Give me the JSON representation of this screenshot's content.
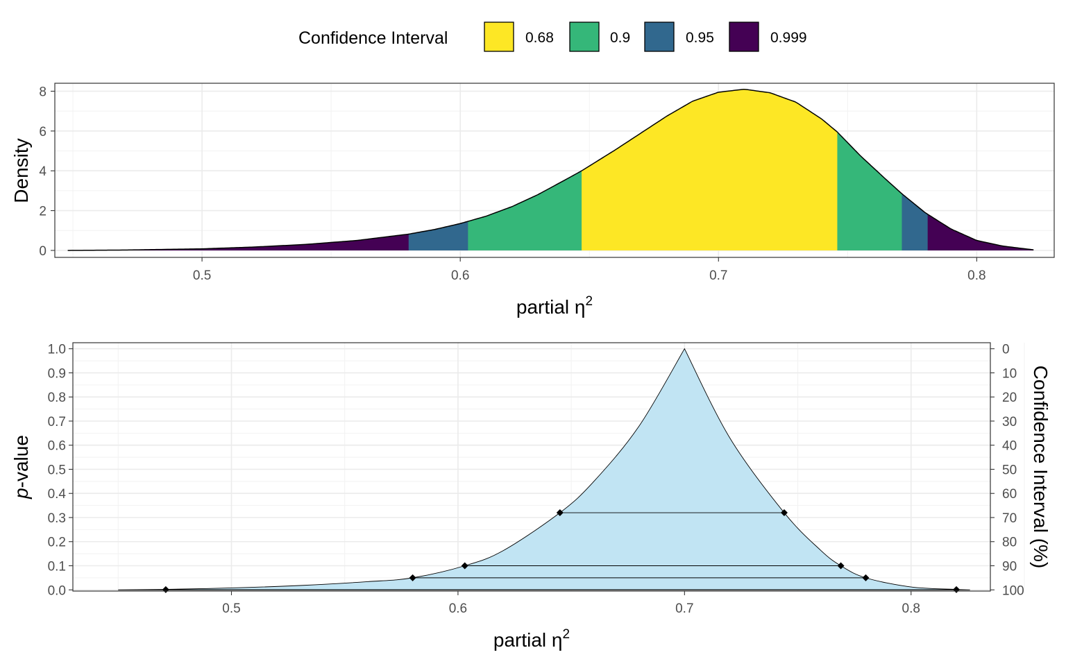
{
  "legend": {
    "title": "Confidence Interval",
    "entries": [
      {
        "label": "0.68",
        "color": "#FDE725"
      },
      {
        "label": "0.9",
        "color": "#35B779"
      },
      {
        "label": "0.95",
        "color": "#31688E"
      },
      {
        "label": "0.999",
        "color": "#440154"
      }
    ]
  },
  "chart_data": [
    {
      "type": "area",
      "xlabel": "partial η²",
      "xlabel_base": "partial η",
      "xlabel_sup": "2",
      "ylabel": "Density",
      "xlim": [
        0.443,
        0.83
      ],
      "ylim": [
        -0.35,
        8.4
      ],
      "x_ticks": [
        "0.5",
        "0.6",
        "0.7",
        "0.8"
      ],
      "y_ticks": [
        "0",
        "2",
        "4",
        "6",
        "8"
      ],
      "x_tick_values": [
        0.5,
        0.6,
        0.7,
        0.8
      ],
      "y_tick_values": [
        0,
        2,
        4,
        6,
        8
      ],
      "curve": {
        "x": [
          0.448,
          0.47,
          0.5,
          0.52,
          0.54,
          0.56,
          0.58,
          0.59,
          0.6,
          0.61,
          0.62,
          0.63,
          0.64,
          0.647,
          0.66,
          0.67,
          0.68,
          0.69,
          0.7,
          0.71,
          0.72,
          0.73,
          0.74,
          0.746,
          0.755,
          0.765,
          0.771,
          0.78,
          0.79,
          0.8,
          0.81,
          0.822
        ],
        "y": [
          0.0,
          0.02,
          0.08,
          0.17,
          0.3,
          0.5,
          0.82,
          1.05,
          1.35,
          1.72,
          2.2,
          2.8,
          3.5,
          4.0,
          5.05,
          5.9,
          6.75,
          7.5,
          7.95,
          8.1,
          7.92,
          7.45,
          6.6,
          5.95,
          4.75,
          3.55,
          2.85,
          1.9,
          1.08,
          0.5,
          0.22,
          0.03
        ]
      },
      "bands": [
        {
          "level": "0.999",
          "color": "#440154",
          "from": 0.448,
          "to": 0.822
        },
        {
          "level": "0.95",
          "color": "#31688E",
          "from": 0.58,
          "to": 0.781
        },
        {
          "level": "0.9",
          "color": "#35B779",
          "from": 0.603,
          "to": 0.771
        },
        {
          "level": "0.68",
          "color": "#FDE725",
          "from": 0.647,
          "to": 0.746
        }
      ],
      "grid": true
    },
    {
      "type": "area",
      "xlabel": "partial η²",
      "xlabel_base": "partial η",
      "xlabel_sup": "2",
      "ylabel": "p-value",
      "ylabel_italic": "p",
      "ylabel_rest": "-value",
      "y2label": "Confidence Interval (%)",
      "xlim": [
        0.43,
        0.835
      ],
      "ylim": [
        -0.005,
        1.025
      ],
      "x_ticks": [
        "0.5",
        "0.6",
        "0.7",
        "0.8"
      ],
      "y_ticks": [
        "0.0",
        "0.1",
        "0.2",
        "0.3",
        "0.4",
        "0.5",
        "0.6",
        "0.7",
        "0.8",
        "0.9",
        "1.0"
      ],
      "y2_ticks": [
        "100",
        "90",
        "80",
        "70",
        "60",
        "50",
        "40",
        "30",
        "20",
        "10",
        "0"
      ],
      "x_tick_values": [
        0.5,
        0.6,
        0.7,
        0.8
      ],
      "fill": "#C1E4F3",
      "curve": {
        "x": [
          0.45,
          0.47,
          0.5,
          0.53,
          0.56,
          0.58,
          0.603,
          0.62,
          0.645,
          0.66,
          0.68,
          0.7,
          0.72,
          0.744,
          0.76,
          0.769,
          0.78,
          0.8,
          0.82,
          0.826
        ],
        "y": [
          0.0,
          0.002,
          0.008,
          0.018,
          0.034,
          0.05,
          0.1,
          0.163,
          0.32,
          0.45,
          0.68,
          1.0,
          0.63,
          0.32,
          0.165,
          0.1,
          0.05,
          0.012,
          0.002,
          0.0
        ]
      },
      "intervals": [
        {
          "level": 0.68,
          "p": 0.32,
          "from": 0.645,
          "to": 0.744
        },
        {
          "level": 0.9,
          "p": 0.1,
          "from": 0.603,
          "to": 0.769
        },
        {
          "level": 0.95,
          "p": 0.05,
          "from": 0.58,
          "to": 0.78
        },
        {
          "level": 0.999,
          "p": 0.001,
          "from": 0.471,
          "to": 0.82
        }
      ],
      "grid": true
    }
  ]
}
